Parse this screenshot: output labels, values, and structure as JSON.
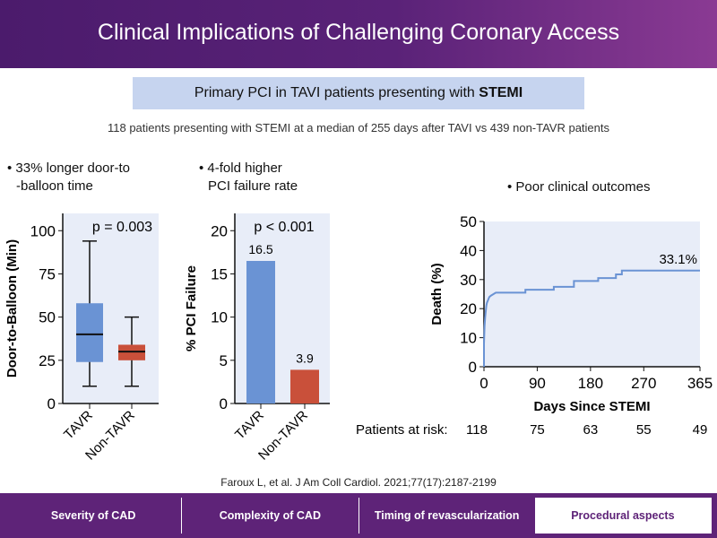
{
  "header": {
    "title": "Clinical Implications of Challenging Coronary Access"
  },
  "banner": {
    "text": "Primary PCI in TAVI patients presenting with ",
    "bold": "STEMI"
  },
  "subtitle": "118 patients presenting with STEMI at a median of 255 days after TAVI vs 439 non-TAVR patients",
  "bullets": [
    "• 33% longer door-to",
    "-balloon time",
    "• 4-fold higher",
    "PCI failure rate",
    "• Poor clinical outcomes"
  ],
  "colors": {
    "tavr": "#6a93d4",
    "nontavr": "#c9503a",
    "plot_bg": "#e8edf8"
  },
  "chart_data": [
    {
      "type": "box",
      "ylabel": "Door-to-Balloon (Min)",
      "ylim": [
        0,
        110
      ],
      "yticks": [
        0,
        25,
        50,
        75,
        100
      ],
      "annotation": "p = 0.003",
      "categories": [
        "TAVR",
        "Non-TAVR"
      ],
      "boxes": [
        {
          "min": 10,
          "q1": 24,
          "median": 40,
          "q3": 58,
          "max": 94
        },
        {
          "min": 10,
          "q1": 25,
          "median": 30,
          "q3": 34,
          "max": 50
        }
      ]
    },
    {
      "type": "bar",
      "ylabel": "% PCI Failure",
      "ylim": [
        0,
        22
      ],
      "yticks": [
        0,
        5,
        10,
        15,
        20
      ],
      "annotation": "p < 0.001",
      "categories": [
        "TAVR",
        "Non-TAVR"
      ],
      "values": [
        16.5,
        3.9
      ],
      "labels": [
        "16.5",
        "3.9"
      ]
    },
    {
      "type": "line",
      "xlabel": "Days Since STEMI",
      "ylabel": "Death (%)",
      "xlim": [
        0,
        365
      ],
      "ylim": [
        0,
        50
      ],
      "xticks": [
        0,
        90,
        180,
        270,
        365
      ],
      "yticks": [
        0,
        10,
        20,
        30,
        40,
        50
      ],
      "annotation": "33.1%",
      "x": [
        0,
        0,
        1,
        2,
        3,
        4,
        5,
        7,
        9,
        12,
        16,
        20,
        70,
        70,
        118,
        118,
        152,
        152,
        193,
        193,
        223,
        223,
        233,
        233,
        365
      ],
      "y": [
        0,
        8,
        14,
        17,
        19,
        21,
        22,
        23,
        24,
        24.5,
        25,
        25.5,
        25.5,
        26.5,
        26.5,
        27.5,
        27.5,
        29.5,
        29.5,
        30.5,
        30.5,
        31.8,
        31.8,
        33.1,
        33.1
      ],
      "at_risk_label": "Patients at risk:",
      "at_risk": [
        "118",
        "75",
        "63",
        "55",
        "49"
      ]
    }
  ],
  "citation": "Faroux L, et al. J Am Coll Cardiol. 2021;77(17):2187-2199",
  "tabs": [
    "Severity of CAD",
    "Complexity of CAD",
    "Timing of revascularization",
    "Procedural aspects"
  ]
}
